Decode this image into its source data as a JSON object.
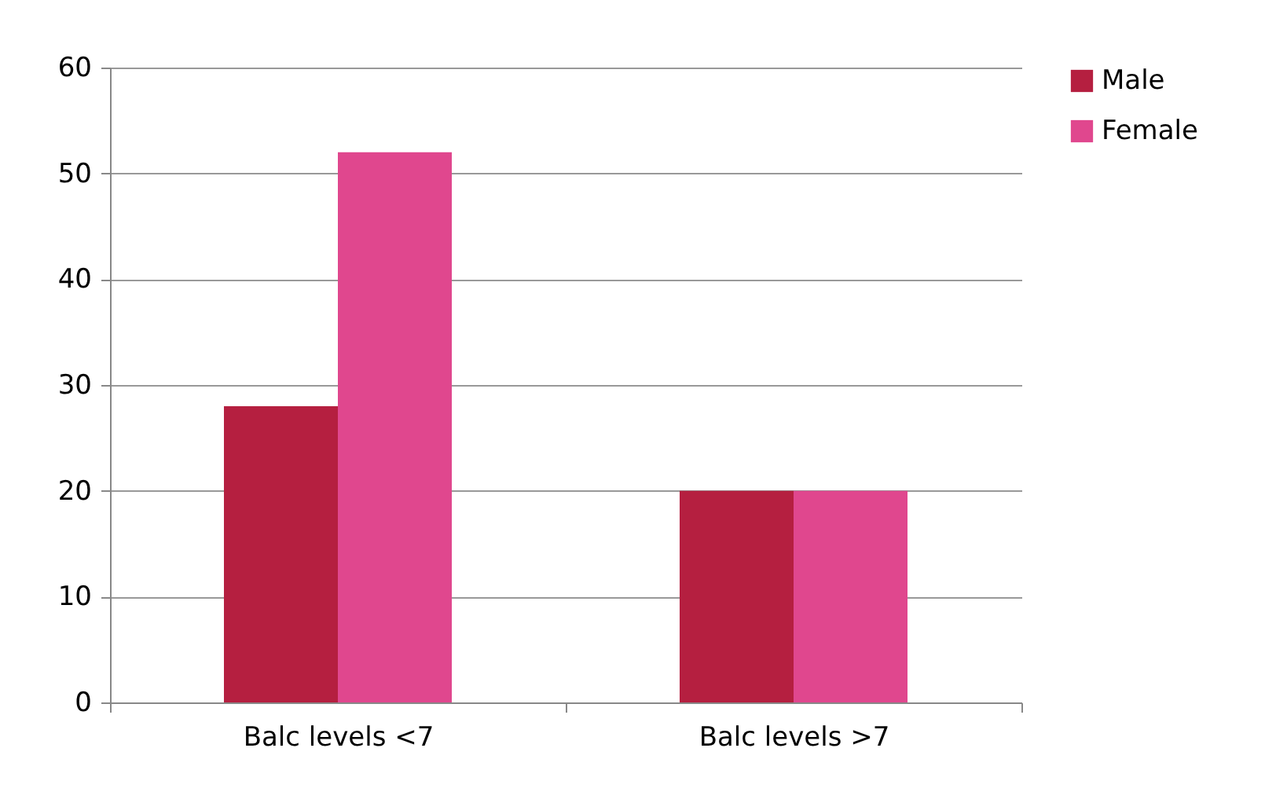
{
  "chart_data": {
    "type": "bar",
    "categories": [
      "Balc levels <7",
      "Balc levels >7"
    ],
    "series": [
      {
        "name": "Male",
        "color": "#b51f40",
        "values": [
          28,
          20
        ]
      },
      {
        "name": "Female",
        "color": "#e0478e",
        "values": [
          52,
          20
        ]
      }
    ],
    "ylim": [
      0,
      60
    ],
    "yticks": [
      0,
      10,
      20,
      30,
      40,
      50,
      60
    ],
    "grid": "y",
    "legend": "right"
  }
}
